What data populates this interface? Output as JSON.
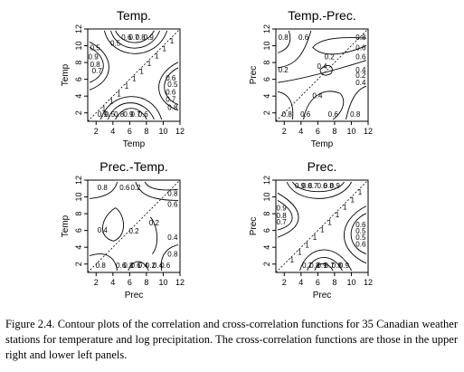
{
  "caption": "Figure 2.4. Contour plots of the correlation and cross-correlation functions for 35 Canadian weather stations for temperature and log precipitation. The cross-correlation functions are those in the upper right and lower left panels.",
  "chart_data": [
    {
      "type": "contour",
      "title": "Temp.",
      "xlabel": "Temp",
      "ylabel": "Temp",
      "xticks": [
        2,
        4,
        6,
        8,
        10,
        12
      ],
      "yticks": [
        2,
        4,
        6,
        8,
        10,
        12
      ],
      "xlim": [
        1,
        12
      ],
      "ylim": [
        1,
        12
      ],
      "diagonal_label": "1",
      "contour_labels": [
        "0.6",
        "0.7",
        "0.8",
        "0.9",
        "0.5",
        "0.9",
        "0.8",
        "0.7",
        "0.6",
        "0.5",
        "0.6",
        "0.7",
        "0.8",
        "0.9",
        "0.5",
        "0.8",
        "0.9",
        "0.7",
        "0.6",
        "0.5"
      ]
    },
    {
      "type": "contour",
      "title": "Temp.-Prec.",
      "xlabel": "Temp",
      "ylabel": "Prec",
      "xticks": [
        2,
        4,
        6,
        8,
        10,
        12
      ],
      "yticks": [
        2,
        4,
        6,
        8,
        10,
        12
      ],
      "xlim": [
        1,
        12
      ],
      "ylim": [
        1,
        12
      ],
      "contour_labels": [
        "0.8",
        "0.6",
        "0.2",
        "0.8",
        "0.6",
        "0.4",
        "0.2",
        "0.4",
        "0.8",
        "0.6",
        "0.6",
        "0.8",
        "0.4",
        "0.2",
        "0.6",
        "0.4"
      ]
    },
    {
      "type": "contour",
      "title": "Prec.-Temp.",
      "xlabel": "Prec",
      "ylabel": "Temp",
      "xticks": [
        2,
        4,
        6,
        8,
        10,
        12
      ],
      "yticks": [
        2,
        4,
        6,
        8,
        10,
        12
      ],
      "xlim": [
        1,
        12
      ],
      "ylim": [
        1,
        12
      ],
      "contour_labels": [
        "0.8",
        "0.6",
        "0.2",
        "0.8",
        "0.6",
        "0.4",
        "0.2",
        "0.4",
        "0.2",
        "0.8",
        "0.6",
        "0.8",
        "0.6",
        "0.4",
        "0.2",
        "0.4",
        "0.6",
        "0.8"
      ]
    },
    {
      "type": "contour",
      "title": "Prec.",
      "xlabel": "Prec",
      "ylabel": "Prec",
      "xticks": [
        2,
        4,
        6,
        8,
        10,
        12
      ],
      "yticks": [
        2,
        4,
        6,
        8,
        10,
        12
      ],
      "xlim": [
        1,
        12
      ],
      "ylim": [
        1,
        12
      ],
      "diagonal_label": "1",
      "contour_labels": [
        "0.9",
        "0.8",
        "0.7",
        "0.6",
        "0.8",
        "0.9",
        "0.9",
        "0.8",
        "0.7",
        "0.6",
        "0.5",
        "0.5",
        "0.6",
        "0.7",
        "0.8",
        "0.9",
        "0.7",
        "0.8",
        "0.9"
      ]
    }
  ]
}
